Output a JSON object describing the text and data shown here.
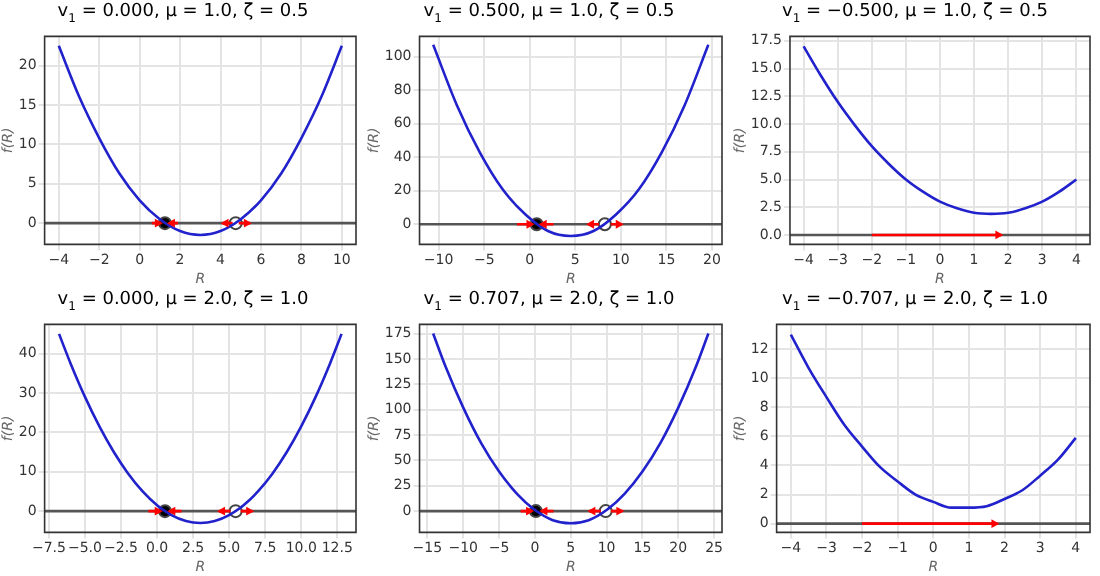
{
  "chart_data": [
    {
      "type": "line",
      "title": "v$_{1}$ = 0.000, μ = 1.0, ζ = 0.5",
      "xlabel": "R",
      "ylabel": "f(R)",
      "grid": true,
      "legend": false,
      "xlim": [
        -4.7,
        10.7
      ],
      "ylim": [
        -2.7,
        23.7
      ],
      "xticks": [
        -4,
        -2,
        0,
        2,
        4,
        6,
        8,
        10
      ],
      "yticks": [
        0,
        5,
        10,
        15,
        20
      ],
      "ref_lines": [
        {
          "axis": "y",
          "value": 0,
          "color": "#555555"
        }
      ],
      "series": [
        {
          "type": "line",
          "color": "#2222cc",
          "marker": "none",
          "x": [
            -4,
            -3,
            -2,
            -1,
            0,
            1,
            2,
            3,
            4,
            5,
            6,
            7,
            8,
            9,
            10
          ],
          "values": [
            22.5,
            16.1,
            10.8,
            6.3,
            2.9,
            0.5,
            -1.0,
            -1.5,
            -1.0,
            0.5,
            2.9,
            6.3,
            10.8,
            16.1,
            22.5
          ]
        },
        {
          "type": "line",
          "color": "#ff0000",
          "marker": "triangle",
          "x": [
            0.6,
            1.05,
            null,
            1.9,
            1.45,
            null,
            4.6,
            4.1,
            null,
            4.9,
            5.45
          ],
          "values": [
            0,
            0,
            null,
            0,
            0,
            null,
            0,
            0,
            null,
            0,
            0
          ]
        },
        {
          "type": "scatter",
          "color": "#000000",
          "marker": "circle",
          "x": [
            1.25
          ],
          "values": [
            0
          ]
        },
        {
          "type": "scatter",
          "color": "#ffffff",
          "marker": "circle",
          "x": [
            4.75
          ],
          "values": [
            0
          ]
        }
      ]
    },
    {
      "type": "line",
      "title": "v$_{1}$ = 0.500, μ = 1.0, ζ = 0.5",
      "xlabel": "R",
      "ylabel": "f(R)",
      "grid": true,
      "legend": false,
      "xlim": [
        -12.1,
        21.1
      ],
      "ylim": [
        -12,
        112
      ],
      "xticks": [
        -10,
        -5,
        0,
        5,
        10,
        15,
        20
      ],
      "yticks": [
        0,
        20,
        40,
        60,
        80,
        100
      ],
      "ref_lines": [
        {
          "axis": "y",
          "value": 0,
          "color": "#555555"
        }
      ],
      "series": [
        {
          "type": "line",
          "color": "#2222cc",
          "marker": "none",
          "x": [
            -10.6,
            -8,
            -5.5,
            -3,
            -0.5,
            2,
            4.5,
            7,
            9.5,
            12,
            14.5,
            17,
            19.6
          ],
          "values": [
            107,
            71,
            43,
            21,
            6,
            -4,
            -7,
            -4,
            6,
            21,
            43,
            71,
            107
          ]
        },
        {
          "type": "line",
          "color": "#ff0000",
          "marker": "triangle",
          "x": [
            -1.4,
            0.3,
            null,
            2.6,
            1.2,
            null,
            7.6,
            6.4,
            null,
            8.9,
            10.1
          ],
          "values": [
            0,
            0,
            null,
            0,
            0,
            null,
            0,
            0,
            null,
            0,
            0
          ]
        },
        {
          "type": "scatter",
          "color": "#000000",
          "marker": "circle",
          "x": [
            0.76
          ],
          "values": [
            0
          ]
        },
        {
          "type": "scatter",
          "color": "#ffffff",
          "marker": "circle",
          "x": [
            8.24
          ],
          "values": [
            0
          ]
        }
      ]
    },
    {
      "type": "line",
      "title": "v$_{1}$ = −0.500, μ = 1.0, ζ = 0.5",
      "xlabel": "R",
      "ylabel": "f(R)",
      "grid": true,
      "legend": false,
      "xlim": [
        -4.4,
        4.4
      ],
      "ylim": [
        -0.85,
        17.9
      ],
      "xticks": [
        -4,
        -3,
        -2,
        -1,
        0,
        1,
        2,
        3,
        4
      ],
      "yticks": [
        {
          "value": 0,
          "label": "0.0"
        },
        {
          "value": 2.5,
          "label": "2.5"
        },
        {
          "value": 5,
          "label": "5.0"
        },
        {
          "value": 7.5,
          "label": "7.5"
        },
        {
          "value": 10,
          "label": "10.0"
        },
        {
          "value": 12.5,
          "label": "12.5"
        },
        {
          "value": 15,
          "label": "15.0"
        },
        {
          "value": 17.5,
          "label": "17.5"
        }
      ],
      "ref_lines": [
        {
          "axis": "y",
          "value": 0,
          "color": "#555555"
        }
      ],
      "series": [
        {
          "type": "line",
          "color": "#2222cc",
          "marker": "none",
          "x": [
            -4,
            -3.5,
            -3,
            -2.5,
            -2,
            -1.5,
            -1,
            -0.5,
            0,
            0.5,
            1,
            1.5,
            2,
            2.5,
            3,
            3.5,
            4
          ],
          "values": [
            17.0,
            14.4,
            12.0,
            9.9,
            8.0,
            6.4,
            5.0,
            3.9,
            3.0,
            2.4,
            2.0,
            1.9,
            2.0,
            2.4,
            3.0,
            3.9,
            5.0
          ]
        },
        {
          "type": "line",
          "color": "#ff0000",
          "marker": "triangle",
          "x": [
            -2,
            1.8
          ],
          "values": [
            0,
            0
          ]
        }
      ]
    },
    {
      "type": "line",
      "title": "v$_{1}$ = 0.000, μ = 2.0, ζ = 1.0",
      "xlabel": "R",
      "ylabel": "f(R)",
      "grid": true,
      "legend": false,
      "xlim": [
        -7.8,
        13.8
      ],
      "ylim": [
        -5.4,
        47.4
      ],
      "xticks": [
        {
          "value": -7.5,
          "label": "−7.5"
        },
        {
          "value": -5,
          "label": "−5.0"
        },
        {
          "value": -2.5,
          "label": "−2.5"
        },
        {
          "value": 0,
          "label": "0.0"
        },
        {
          "value": 2.5,
          "label": "2.5"
        },
        {
          "value": 5,
          "label": "5.0"
        },
        {
          "value": 7.5,
          "label": "7.5"
        },
        {
          "value": 10,
          "label": "10.0"
        },
        {
          "value": 12.5,
          "label": "12.5"
        }
      ],
      "yticks": [
        0,
        10,
        20,
        30,
        40
      ],
      "ref_lines": [
        {
          "axis": "y",
          "value": 0,
          "color": "#555555"
        }
      ],
      "series": [
        {
          "type": "line",
          "color": "#2222cc",
          "marker": "none",
          "x": [
            -6.8,
            -6,
            -5,
            -4,
            -3,
            -2,
            -1,
            0,
            1,
            2,
            3,
            4,
            5,
            6,
            7,
            8,
            9,
            10,
            11,
            12,
            12.8
          ],
          "values": [
            45,
            37.5,
            29,
            21.5,
            15,
            9.5,
            5,
            1.5,
            -1,
            -2.5,
            -3,
            -2.5,
            -1,
            1.5,
            5,
            9.5,
            15,
            21.5,
            29,
            37.5,
            45
          ]
        },
        {
          "type": "line",
          "color": "#ff0000",
          "marker": "triangle",
          "x": [
            -0.6,
            0.25,
            null,
            1.7,
            0.85,
            null,
            5.1,
            4.3,
            null,
            5.8,
            6.6
          ],
          "values": [
            0,
            0,
            null,
            0,
            0,
            null,
            0,
            0,
            null,
            0,
            0
          ]
        },
        {
          "type": "scatter",
          "color": "#000000",
          "marker": "circle",
          "x": [
            0.55
          ],
          "values": [
            0
          ]
        },
        {
          "type": "scatter",
          "color": "#ffffff",
          "marker": "circle",
          "x": [
            5.45
          ],
          "values": [
            0
          ]
        }
      ]
    },
    {
      "type": "line",
      "title": "v$_{1}$ = 0.707, μ = 2.0, ζ = 1.0",
      "xlabel": "R",
      "ylabel": "f(R)",
      "grid": true,
      "legend": false,
      "xlim": [
        -16.1,
        26.1
      ],
      "ylim": [
        -21,
        184
      ],
      "xticks": [
        -15,
        -10,
        -5,
        0,
        5,
        10,
        15,
        20,
        25
      ],
      "yticks": [
        0,
        25,
        50,
        75,
        100,
        125,
        150,
        175
      ],
      "ref_lines": [
        {
          "axis": "y",
          "value": 0,
          "color": "#555555"
        }
      ],
      "series": [
        {
          "type": "line",
          "color": "#2222cc",
          "marker": "none",
          "x": [
            -14.2,
            -12.5,
            -10,
            -7.5,
            -5,
            -2.5,
            0,
            2.5,
            5,
            7.5,
            10,
            12.5,
            15,
            17.5,
            20,
            22.5,
            24.2
          ],
          "values": [
            175,
            143,
            102,
            67,
            39,
            17,
            1,
            -9,
            -12,
            -9,
            1,
            17,
            39,
            67,
            102,
            143,
            175
          ]
        },
        {
          "type": "line",
          "color": "#ff0000",
          "marker": "triangle",
          "x": [
            -2,
            -0.4,
            null,
            2.6,
            0.9,
            null,
            9.2,
            7.6,
            null,
            10.6,
            12.2
          ],
          "values": [
            0,
            0,
            null,
            0,
            0,
            null,
            0,
            0,
            null,
            0,
            0
          ]
        },
        {
          "type": "scatter",
          "color": "#000000",
          "marker": "circle",
          "x": [
            0.13
          ],
          "values": [
            0
          ]
        },
        {
          "type": "scatter",
          "color": "#ffffff",
          "marker": "circle",
          "x": [
            9.87
          ],
          "values": [
            0
          ]
        }
      ]
    },
    {
      "type": "line",
      "title": "v$_{1}$ = −0.707, μ = 2.0, ζ = 1.0",
      "xlabel": "R",
      "ylabel": "f(R)",
      "grid": true,
      "legend": false,
      "xlim": [
        -4.4,
        4.4
      ],
      "ylim": [
        -0.6,
        13.7
      ],
      "xticks": [
        -4,
        -3,
        -2,
        -1,
        0,
        1,
        2,
        3,
        4
      ],
      "yticks": [
        0,
        2,
        4,
        6,
        8,
        10,
        12
      ],
      "ref_lines": [
        {
          "axis": "y",
          "value": 0,
          "color": "#555555"
        }
      ],
      "series": [
        {
          "type": "line",
          "color": "#2222cc",
          "marker": "none",
          "x": [
            -4,
            -3.5,
            -3,
            -2.5,
            -2,
            -1.5,
            -1,
            -0.5,
            0,
            0.5,
            1,
            1.5,
            2,
            2.5,
            3,
            3.5,
            4
          ],
          "values": [
            13.0,
            10.7,
            8.7,
            6.8,
            5.3,
            3.9,
            2.9,
            2.0,
            1.5,
            1.1,
            1.1,
            1.2,
            1.7,
            2.3,
            3.3,
            4.4,
            5.9
          ]
        },
        {
          "type": "line",
          "color": "#ff0000",
          "marker": "triangle",
          "x": [
            -2,
            1.8
          ],
          "values": [
            0,
            0
          ]
        }
      ]
    }
  ]
}
